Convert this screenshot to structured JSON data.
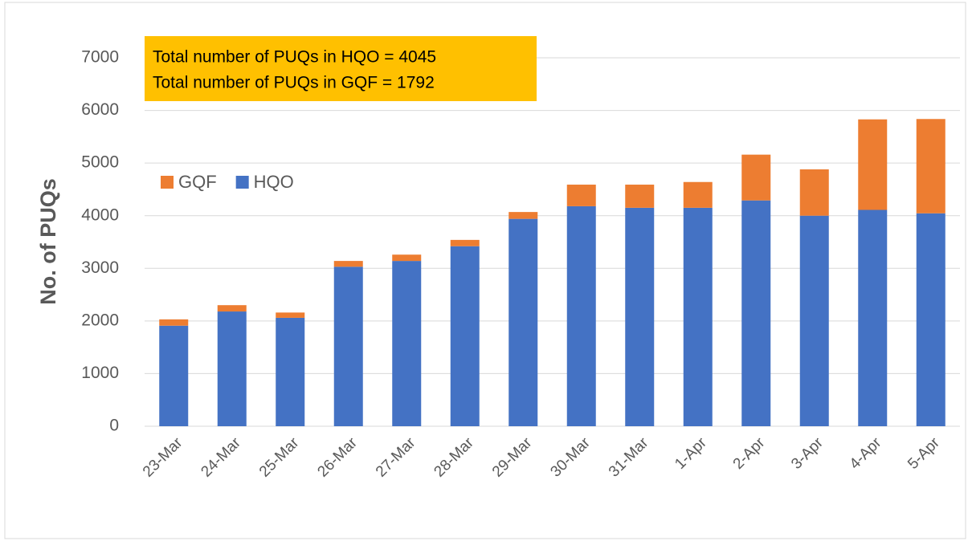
{
  "chart_data": {
    "type": "stacked_bar",
    "y_label": "No. of PUQs",
    "annotation": [
      "Total number of PUQs in HQO = 4045",
      "Total number of PUQs in GQF = 1792"
    ],
    "categories": [
      "23-Mar",
      "24-Mar",
      "25-Mar",
      "26-Mar",
      "27-Mar",
      "28-Mar",
      "29-Mar",
      "30-Mar",
      "31-Mar",
      "1-Apr",
      "2-Apr",
      "3-Apr",
      "4-Apr",
      "5-Apr"
    ],
    "series": [
      {
        "name": "HQO",
        "color": "#4472c4",
        "values": [
          1910,
          2180,
          2060,
          3030,
          3140,
          3420,
          3940,
          4180,
          4150,
          4150,
          4290,
          4000,
          4110,
          4045
        ]
      },
      {
        "name": "GQF",
        "color": "#ed7d31",
        "values": [
          120,
          120,
          100,
          110,
          120,
          120,
          130,
          410,
          440,
          490,
          870,
          880,
          1720,
          1792
        ]
      }
    ],
    "legend_order": [
      1,
      0
    ],
    "ylim": [
      0,
      7000
    ],
    "yticks": [
      0,
      1000,
      2000,
      3000,
      4000,
      5000,
      6000,
      7000
    ],
    "grid": true
  }
}
